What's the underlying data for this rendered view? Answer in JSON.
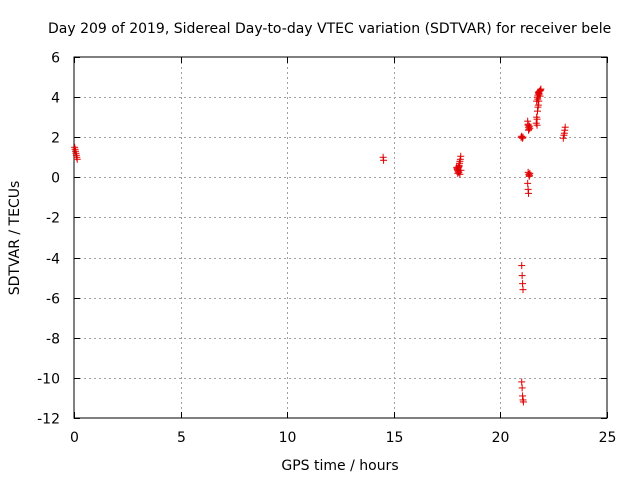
{
  "chart_data": {
    "type": "scatter",
    "title": "Day 209 of 2019, Sidereal Day-to-day VTEC variation (SDTVAR) for receiver bele",
    "xlabel": "GPS time / hours",
    "ylabel": "SDTVAR / TECUs",
    "xlim": [
      0,
      25
    ],
    "ylim": [
      -12,
      6
    ],
    "xticks": [
      0,
      5,
      10,
      15,
      20,
      25
    ],
    "yticks": [
      -12,
      -10,
      -8,
      -6,
      -4,
      -2,
      0,
      2,
      4,
      6
    ],
    "grid": true,
    "marker": "+",
    "colors": {
      "series": "#e00000",
      "grid": "#a0a0a0",
      "axis": "#000000"
    },
    "series": [
      {
        "name": "SDTVAR",
        "x": [
          0.03,
          0.05,
          0.07,
          0.09,
          0.11,
          0.13,
          0.15,
          14.5,
          14.52,
          17.95,
          17.98,
          18.0,
          18.02,
          18.04,
          18.06,
          18.08,
          18.1,
          18.12,
          18.14,
          18.0,
          18.05,
          18.1,
          17.97,
          18.15,
          18.06,
          20.97,
          21.0,
          21.03,
          21.06,
          21.0,
          21.02,
          21.04,
          21.06,
          21.0,
          21.02,
          21.04,
          21.06,
          21.08,
          21.28,
          21.3,
          21.32,
          21.34,
          21.36,
          21.38,
          21.3,
          21.32,
          21.3,
          21.33,
          21.36,
          21.38,
          21.35,
          21.28,
          21.3,
          21.32,
          21.68,
          21.72,
          21.7,
          21.74,
          21.76,
          21.7,
          21.73,
          21.76,
          21.8,
          21.84,
          21.88,
          21.78,
          21.82,
          21.86,
          21.75,
          21.8,
          21.85,
          21.9,
          21.8,
          21.72,
          21.78,
          22.95,
          22.98,
          23.0,
          23.02,
          23.04
        ],
        "y": [
          1.5,
          1.4,
          1.3,
          1.2,
          1.1,
          1.0,
          0.9,
          1.0,
          0.85,
          0.5,
          0.4,
          0.35,
          0.3,
          0.5,
          0.6,
          0.7,
          0.8,
          0.9,
          1.05,
          0.2,
          0.25,
          0.15,
          0.45,
          0.35,
          0.55,
          2.0,
          2.05,
          1.95,
          2.0,
          -4.4,
          -4.9,
          -5.3,
          -5.6,
          -10.2,
          -10.5,
          -10.9,
          -11.1,
          -11.2,
          2.8,
          2.6,
          2.5,
          2.4,
          2.55,
          2.45,
          2.65,
          2.35,
          0.25,
          0.15,
          0.1,
          0.2,
          0.05,
          -0.3,
          -0.6,
          -0.8,
          2.7,
          2.6,
          3.0,
          3.3,
          3.5,
          3.8,
          4.0,
          4.1,
          4.2,
          4.3,
          4.35,
          4.25,
          4.15,
          4.05,
          3.9,
          3.8,
          4.3,
          4.4,
          4.2,
          2.9,
          3.6,
          1.95,
          2.1,
          2.2,
          2.35,
          2.5
        ]
      }
    ]
  }
}
